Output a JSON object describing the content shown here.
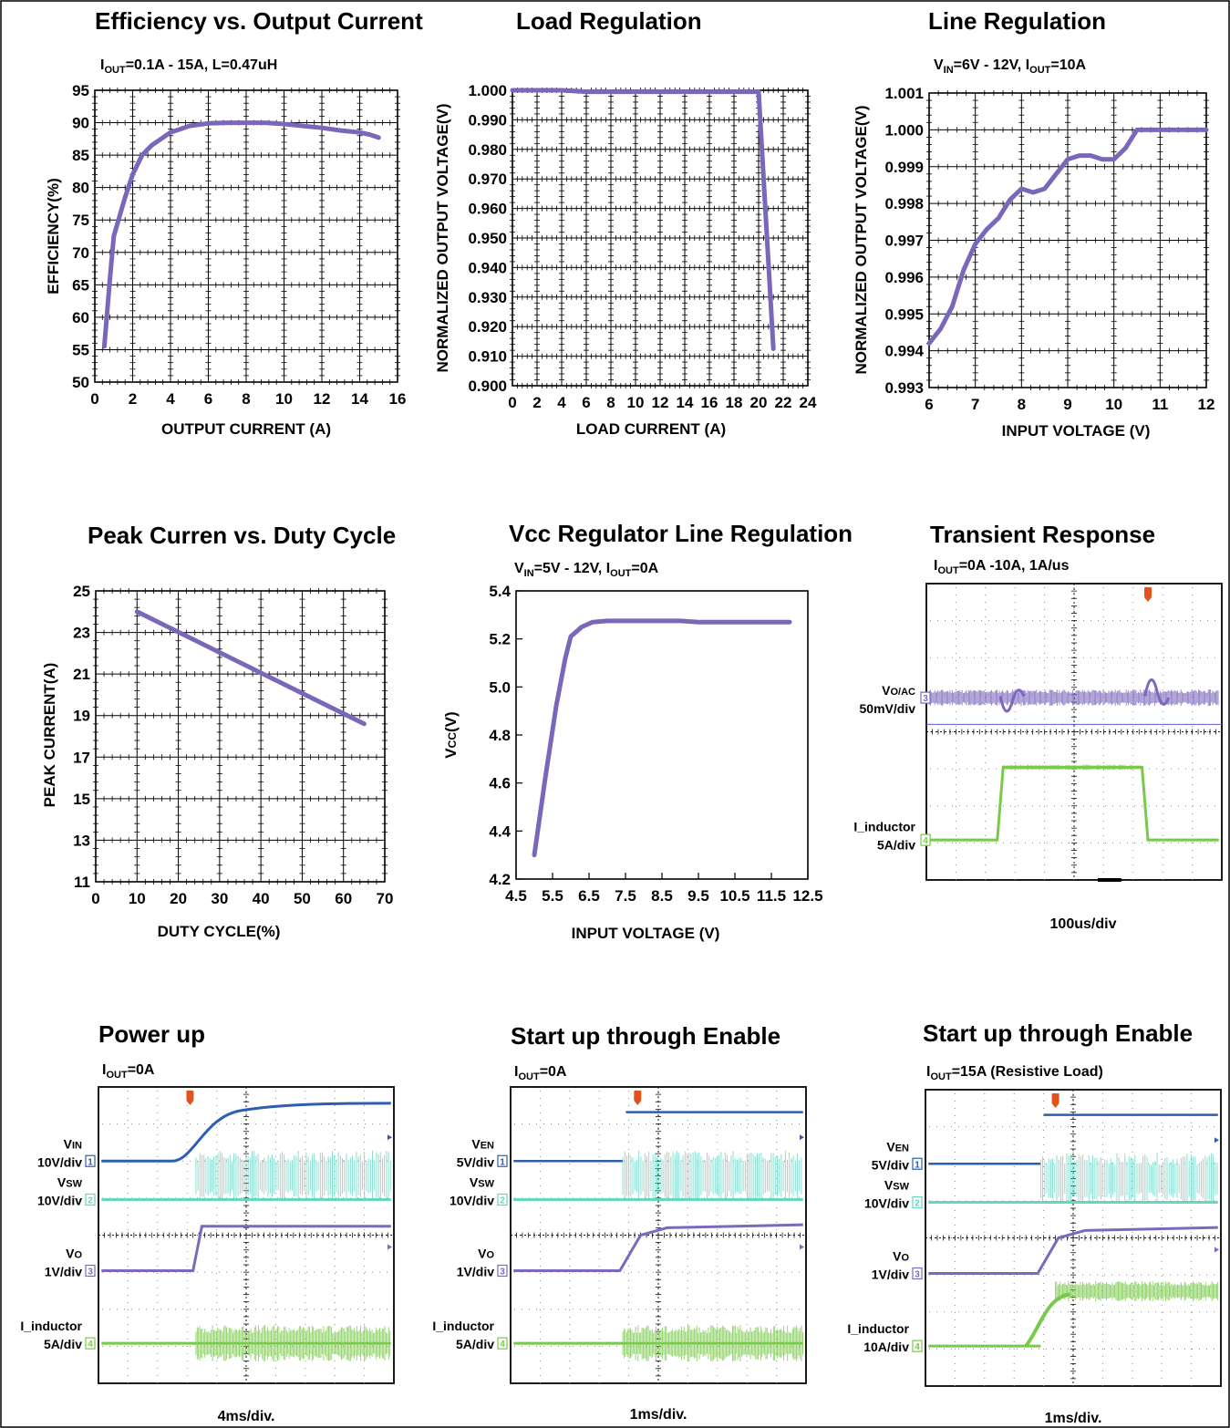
{
  "colors": {
    "curve": "#7b67b9",
    "scope_blue": "#2d5eb0",
    "scope_cyan": "#66d6c0",
    "scope_purple": "#7c68bd",
    "scope_green": "#79c94a",
    "marker": "#e0521e"
  },
  "charts": [
    {
      "id": "eff",
      "type": "line",
      "title": "Efficiency vs. Output Current",
      "subtitle": [
        {
          "t": "I"
        },
        {
          "t": "OUT",
          "sub": true
        },
        {
          "t": "=0.1A - 15A, L=0.47uH"
        }
      ],
      "xlabel": "OUTPUT CURRENT (A)",
      "ylabel": "EFFICIENCY(%)",
      "xlim": [
        0,
        16
      ],
      "ylim": [
        50,
        95
      ],
      "xticks": [
        0,
        2,
        4,
        6,
        8,
        10,
        12,
        14,
        16
      ],
      "yticks": [
        50,
        55,
        60,
        65,
        70,
        75,
        80,
        85,
        90,
        95
      ],
      "grid": true,
      "x": [
        0.5,
        0.8,
        1,
        1.3,
        1.6,
        2,
        2.5,
        3,
        4,
        5,
        6,
        7,
        8,
        9,
        10,
        11,
        12,
        13,
        14,
        14.5,
        15
      ],
      "y": [
        55.5,
        66,
        72.5,
        75.5,
        78.5,
        82,
        85,
        86.5,
        88.5,
        89.5,
        89.9,
        90,
        90,
        90,
        89.8,
        89.5,
        89.2,
        88.8,
        88.5,
        88.2,
        87.7
      ]
    },
    {
      "id": "load",
      "type": "line",
      "title": "Load Regulation",
      "xlabel": "LOAD CURRENT (A)",
      "ylabel": "NORMALIZED OUTPUT VOLTAGE(V)",
      "xlim": [
        0,
        24
      ],
      "ylim": [
        0.9,
        1.0
      ],
      "xticks": [
        0,
        2,
        4,
        6,
        8,
        10,
        12,
        14,
        16,
        18,
        20,
        22,
        24
      ],
      "yticks": [
        0.9,
        0.91,
        0.92,
        0.93,
        0.94,
        0.95,
        0.96,
        0.97,
        0.98,
        0.99,
        1.0
      ],
      "ytick_labels": [
        "0.900",
        "0.910",
        "0.920",
        "0.930",
        "0.940",
        "0.950",
        "0.960",
        "0.970",
        "0.980",
        "0.990",
        "1.000"
      ],
      "grid": true,
      "x": [
        0,
        4,
        6,
        10,
        14,
        18,
        20,
        21.2
      ],
      "y": [
        1.0,
        1.0,
        0.9995,
        0.9995,
        0.9995,
        0.9995,
        0.9995,
        0.9125
      ]
    },
    {
      "id": "line",
      "type": "line",
      "title": "Line Regulation",
      "subtitle": [
        {
          "t": "V"
        },
        {
          "t": "IN",
          "sub": true
        },
        {
          "t": "=6V - 12V, I"
        },
        {
          "t": "OUT",
          "sub": true
        },
        {
          "t": "=10A"
        }
      ],
      "xlabel": "INPUT VOLTAGE (V)",
      "ylabel": "NORMALIZED OUTPUT VOLTAGE(V)",
      "xlim": [
        6,
        12
      ],
      "ylim": [
        0.993,
        1.001
      ],
      "xticks": [
        6,
        7,
        8,
        9,
        10,
        11,
        12
      ],
      "yticks": [
        0.993,
        0.994,
        0.995,
        0.996,
        0.997,
        0.998,
        0.999,
        1.0,
        1.001
      ],
      "ytick_labels": [
        "0.993",
        "0.994",
        "0.995",
        "0.996",
        "0.997",
        "0.998",
        "0.999",
        "1.000",
        "1.001"
      ],
      "grid": true,
      "x": [
        6,
        6.25,
        6.5,
        6.75,
        7,
        7.25,
        7.5,
        7.75,
        8,
        8.25,
        8.5,
        8.75,
        9,
        9.25,
        9.5,
        9.75,
        10,
        10.25,
        10.5,
        10.75,
        11,
        11.5,
        12
      ],
      "y": [
        0.9942,
        0.9946,
        0.9952,
        0.9962,
        0.9969,
        0.9973,
        0.9976,
        0.9981,
        0.9984,
        0.9983,
        0.9984,
        0.9988,
        0.9992,
        0.9993,
        0.9993,
        0.9992,
        0.9992,
        0.9995,
        1.0,
        1.0,
        1.0,
        1.0,
        1.0
      ]
    },
    {
      "id": "peak",
      "type": "line",
      "title": "Peak Curren vs. Duty Cycle",
      "xlabel": "DUTY CYCLE(%)",
      "ylabel": "PEAK CURRENT(A)",
      "xlim": [
        0,
        70
      ],
      "ylim": [
        11,
        25
      ],
      "xticks": [
        0,
        10,
        20,
        30,
        40,
        50,
        60,
        70
      ],
      "yticks": [
        11,
        13,
        15,
        17,
        19,
        21,
        23,
        25
      ],
      "grid": true,
      "x": [
        10,
        65
      ],
      "y": [
        24,
        18.6
      ]
    },
    {
      "id": "vcc",
      "type": "line",
      "title": "Vcc Regulator Line Regulation",
      "subtitle": [
        {
          "t": "V"
        },
        {
          "t": "IN",
          "sub": true
        },
        {
          "t": "=5V - 12V, I"
        },
        {
          "t": "OUT",
          "sub": true
        },
        {
          "t": "=0A"
        }
      ],
      "xlabel": "INPUT VOLTAGE (V)",
      "ylabel_parts": [
        {
          "t": "V"
        },
        {
          "t": "CC",
          "small": true
        },
        {
          "t": "(V)"
        }
      ],
      "xlim": [
        4.5,
        12.5
      ],
      "ylim": [
        4.2,
        5.4
      ],
      "xticks": [
        4.5,
        5.5,
        6.5,
        7.5,
        8.5,
        9.5,
        10.5,
        11.5,
        12.5
      ],
      "xtick_labels": [
        "4.5",
        "5.5",
        "6.5",
        "7.5",
        "8.5",
        "9.5",
        "10.5",
        "11.5",
        "12.5"
      ],
      "yticks": [
        4.2,
        4.4,
        4.6,
        4.8,
        5.0,
        5.2,
        5.4
      ],
      "ytick_labels": [
        "4.2",
        "4.4",
        "4.6",
        "4.8",
        "5.0",
        "5.2",
        "5.4"
      ],
      "grid": false,
      "x": [
        5.0,
        5.3,
        5.6,
        5.85,
        6.0,
        6.3,
        6.6,
        7.0,
        8.0,
        9.0,
        9.5,
        10.0,
        11.0,
        12.0
      ],
      "y": [
        4.3,
        4.62,
        4.92,
        5.12,
        5.21,
        5.25,
        5.27,
        5.275,
        5.275,
        5.275,
        5.27,
        5.27,
        5.27,
        5.27
      ]
    }
  ],
  "scopes": [
    {
      "id": "transient",
      "title": "Transient Response",
      "subtitle": [
        {
          "t": "I"
        },
        {
          "t": "OUT",
          "sub": true
        },
        {
          "t": "=0A -10A, 1A/us"
        }
      ],
      "timebase": "100us/div",
      "channels": [
        {
          "marker": "3",
          "label": [
            "V",
            "O/AC",
            "50mV/div"
          ]
        },
        {
          "marker": "4",
          "label": [
            "I_inductor",
            "",
            "5A/div"
          ]
        }
      ]
    },
    {
      "id": "powerup",
      "title": "Power up",
      "subtitle": [
        {
          "t": "I"
        },
        {
          "t": "OUT",
          "sub": true
        },
        {
          "t": "=0A"
        }
      ],
      "timebase": "4ms/div.",
      "channels": [
        {
          "marker": "1",
          "label": [
            "V",
            "IN",
            "10V/div"
          ]
        },
        {
          "marker": "2",
          "label": [
            "V",
            "SW",
            "10V/div"
          ]
        },
        {
          "marker": "3",
          "label": [
            "V",
            "O",
            "1V/div"
          ]
        },
        {
          "marker": "4",
          "label": [
            "I_inductor",
            "",
            "5A/div"
          ]
        }
      ]
    },
    {
      "id": "enable0",
      "title": "Start up through Enable",
      "subtitle": [
        {
          "t": "I"
        },
        {
          "t": "OUT",
          "sub": true
        },
        {
          "t": "=0A"
        }
      ],
      "timebase": "1ms/div.",
      "channels": [
        {
          "marker": "1",
          "label": [
            "V",
            "EN",
            "5V/div"
          ]
        },
        {
          "marker": "2",
          "label": [
            "V",
            "SW",
            "10V/div"
          ]
        },
        {
          "marker": "3",
          "label": [
            "V",
            "O",
            "1V/div"
          ]
        },
        {
          "marker": "4",
          "label": [
            "I_inductor",
            "",
            "5A/div"
          ]
        }
      ]
    },
    {
      "id": "enable15",
      "title": "Start up through Enable",
      "subtitle": [
        {
          "t": "I"
        },
        {
          "t": "OUT",
          "sub": true
        },
        {
          "t": "=15A (Resistive Load)"
        }
      ],
      "timebase": "1ms/div.",
      "channels": [
        {
          "marker": "1",
          "label": [
            "V",
            "EN",
            "5V/div"
          ]
        },
        {
          "marker": "2",
          "label": [
            "V",
            "SW",
            "10V/div"
          ]
        },
        {
          "marker": "3",
          "label": [
            "V",
            "O",
            "1V/div"
          ]
        },
        {
          "marker": "4",
          "label": [
            "I_inductor",
            "",
            "10A/div"
          ]
        }
      ]
    }
  ]
}
